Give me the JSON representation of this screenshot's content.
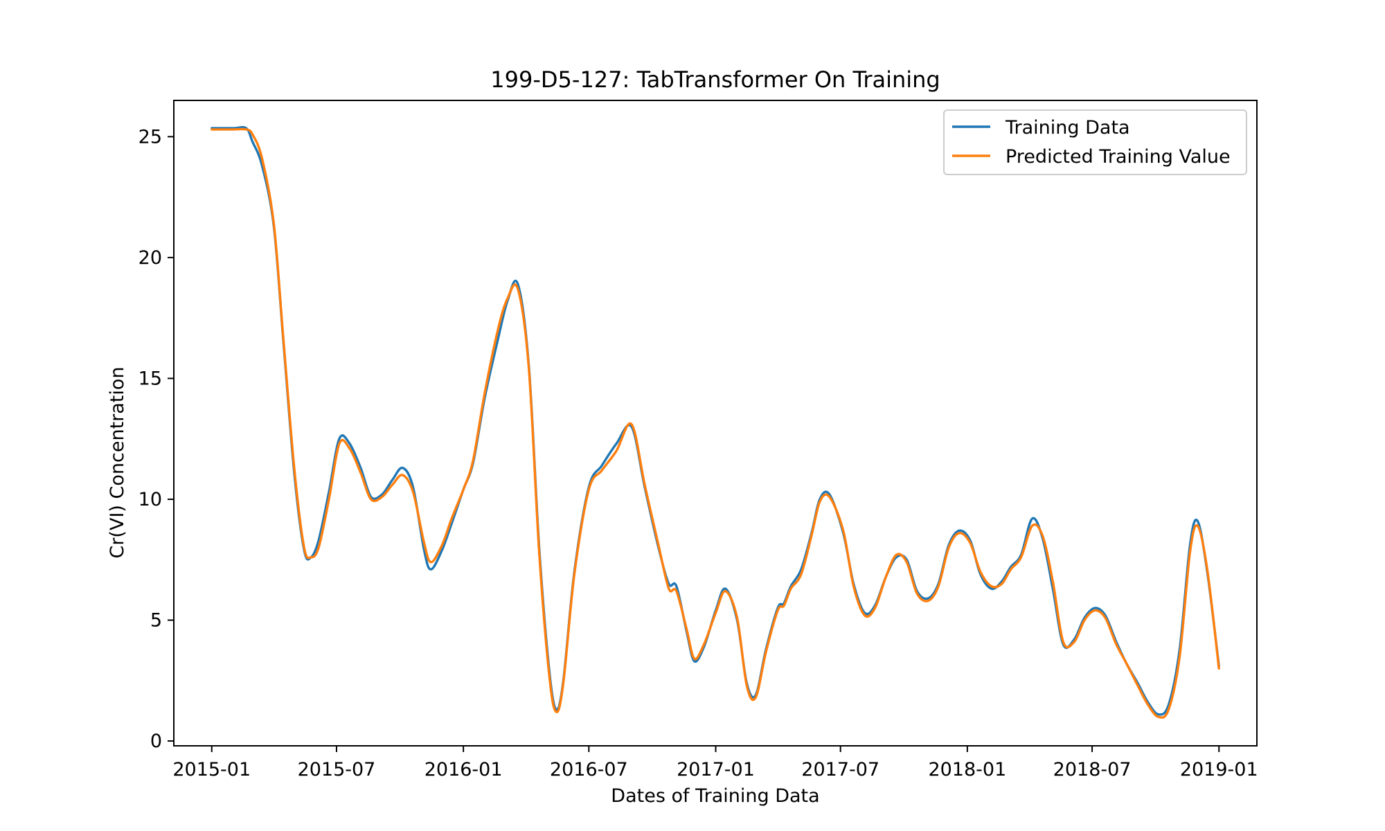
{
  "chart_data": {
    "type": "line",
    "title": "199-D5-127: TabTransformer On Training",
    "xlabel": "Dates of Training Data",
    "ylabel": "Cr(VI) Concentration",
    "xlim": [
      "2014-11-07",
      "2019-02-25"
    ],
    "ylim": [
      -0.2,
      26.5
    ],
    "x_ticks": [
      "2015-01",
      "2015-07",
      "2016-01",
      "2016-07",
      "2017-01",
      "2017-07",
      "2018-01",
      "2018-07",
      "2019-01"
    ],
    "y_ticks": [
      0,
      5,
      10,
      15,
      20,
      25
    ],
    "grid": false,
    "legend": "top-right",
    "series": [
      {
        "name": "Training Data",
        "color": "#1f77b4",
        "points": [
          [
            "2015-01-01",
            25.35
          ],
          [
            "2015-02-01",
            25.35
          ],
          [
            "2015-02-20",
            25.35
          ],
          [
            "2015-03-01",
            24.8
          ],
          [
            "2015-03-15",
            23.8
          ],
          [
            "2015-04-01",
            21.3
          ],
          [
            "2015-04-15",
            16.5
          ],
          [
            "2015-05-01",
            11.0
          ],
          [
            "2015-05-15",
            7.9
          ],
          [
            "2015-05-25",
            7.6
          ],
          [
            "2015-06-05",
            8.3
          ],
          [
            "2015-06-20",
            10.3
          ],
          [
            "2015-07-05",
            12.5
          ],
          [
            "2015-07-20",
            12.3
          ],
          [
            "2015-08-05",
            11.3
          ],
          [
            "2015-08-20",
            10.1
          ],
          [
            "2015-09-05",
            10.2
          ],
          [
            "2015-09-20",
            10.8
          ],
          [
            "2015-10-05",
            11.3
          ],
          [
            "2015-10-20",
            10.5
          ],
          [
            "2015-11-05",
            7.9
          ],
          [
            "2015-11-15",
            7.1
          ],
          [
            "2015-12-01",
            7.9
          ],
          [
            "2015-12-15",
            9.0
          ],
          [
            "2016-01-01",
            10.4
          ],
          [
            "2016-01-15",
            11.5
          ],
          [
            "2016-02-01",
            14.2
          ],
          [
            "2016-02-20",
            16.6
          ],
          [
            "2016-03-05",
            18.2
          ],
          [
            "2016-03-20",
            18.9
          ],
          [
            "2016-04-05",
            15.5
          ],
          [
            "2016-04-20",
            8.0
          ],
          [
            "2016-05-05",
            2.8
          ],
          [
            "2016-05-15",
            1.3
          ],
          [
            "2016-05-25",
            2.5
          ],
          [
            "2016-06-10",
            7.0
          ],
          [
            "2016-07-01",
            10.5
          ],
          [
            "2016-07-20",
            11.4
          ],
          [
            "2016-08-10",
            12.3
          ],
          [
            "2016-09-01",
            13.0
          ],
          [
            "2016-09-20",
            10.5
          ],
          [
            "2016-10-10",
            8.0
          ],
          [
            "2016-10-25",
            6.5
          ],
          [
            "2016-11-05",
            6.4
          ],
          [
            "2016-11-20",
            4.5
          ],
          [
            "2016-12-01",
            3.3
          ],
          [
            "2016-12-15",
            3.9
          ],
          [
            "2017-01-01",
            5.4
          ],
          [
            "2017-01-15",
            6.3
          ],
          [
            "2017-02-01",
            5.0
          ],
          [
            "2017-02-15",
            2.4
          ],
          [
            "2017-02-28",
            1.9
          ],
          [
            "2017-03-15",
            3.8
          ],
          [
            "2017-04-01",
            5.5
          ],
          [
            "2017-04-10",
            5.7
          ],
          [
            "2017-04-20",
            6.4
          ],
          [
            "2017-05-05",
            7.1
          ],
          [
            "2017-05-20",
            8.6
          ],
          [
            "2017-06-01",
            10.0
          ],
          [
            "2017-06-15",
            10.2
          ],
          [
            "2017-07-05",
            8.6
          ],
          [
            "2017-07-20",
            6.5
          ],
          [
            "2017-08-05",
            5.3
          ],
          [
            "2017-08-20",
            5.6
          ],
          [
            "2017-09-05",
            6.8
          ],
          [
            "2017-09-20",
            7.6
          ],
          [
            "2017-10-05",
            7.5
          ],
          [
            "2017-10-20",
            6.2
          ],
          [
            "2017-11-05",
            5.9
          ],
          [
            "2017-11-20",
            6.5
          ],
          [
            "2017-12-05",
            8.1
          ],
          [
            "2017-12-20",
            8.7
          ],
          [
            "2018-01-05",
            8.3
          ],
          [
            "2018-01-20",
            6.9
          ],
          [
            "2018-02-05",
            6.3
          ],
          [
            "2018-02-20",
            6.6
          ],
          [
            "2018-03-05",
            7.2
          ],
          [
            "2018-03-20",
            7.7
          ],
          [
            "2018-04-05",
            9.2
          ],
          [
            "2018-04-20",
            8.4
          ],
          [
            "2018-05-05",
            6.3
          ],
          [
            "2018-05-20",
            4.0
          ],
          [
            "2018-06-05",
            4.2
          ],
          [
            "2018-06-20",
            5.1
          ],
          [
            "2018-07-05",
            5.5
          ],
          [
            "2018-07-20",
            5.2
          ],
          [
            "2018-08-05",
            4.1
          ],
          [
            "2018-08-20",
            3.2
          ],
          [
            "2018-09-05",
            2.4
          ],
          [
            "2018-09-20",
            1.6
          ],
          [
            "2018-10-05",
            1.1
          ],
          [
            "2018-10-20",
            1.5
          ],
          [
            "2018-11-05",
            3.8
          ],
          [
            "2018-11-20",
            8.1
          ],
          [
            "2018-12-01",
            9.1
          ],
          [
            "2018-12-15",
            7.0
          ],
          [
            "2019-01-01",
            3.1
          ]
        ]
      },
      {
        "name": "Predicted Training Value",
        "color": "#ff7f0e",
        "points": [
          [
            "2015-01-01",
            25.3
          ],
          [
            "2015-02-01",
            25.3
          ],
          [
            "2015-02-20",
            25.3
          ],
          [
            "2015-03-01",
            25.1
          ],
          [
            "2015-03-15",
            24.1
          ],
          [
            "2015-04-01",
            21.4
          ],
          [
            "2015-04-15",
            16.6
          ],
          [
            "2015-05-01",
            11.2
          ],
          [
            "2015-05-15",
            8.0
          ],
          [
            "2015-05-25",
            7.6
          ],
          [
            "2015-06-05",
            8.0
          ],
          [
            "2015-06-20",
            10.0
          ],
          [
            "2015-07-05",
            12.3
          ],
          [
            "2015-07-20",
            12.1
          ],
          [
            "2015-08-05",
            11.1
          ],
          [
            "2015-08-20",
            10.0
          ],
          [
            "2015-09-05",
            10.1
          ],
          [
            "2015-09-20",
            10.6
          ],
          [
            "2015-10-05",
            11.0
          ],
          [
            "2015-10-20",
            10.3
          ],
          [
            "2015-11-05",
            8.2
          ],
          [
            "2015-11-15",
            7.4
          ],
          [
            "2015-12-01",
            8.1
          ],
          [
            "2015-12-15",
            9.2
          ],
          [
            "2016-01-01",
            10.4
          ],
          [
            "2016-01-15",
            11.6
          ],
          [
            "2016-02-01",
            14.4
          ],
          [
            "2016-02-20",
            17.0
          ],
          [
            "2016-03-05",
            18.3
          ],
          [
            "2016-03-20",
            18.7
          ],
          [
            "2016-04-05",
            15.4
          ],
          [
            "2016-04-20",
            7.8
          ],
          [
            "2016-05-05",
            2.6
          ],
          [
            "2016-05-15",
            1.2
          ],
          [
            "2016-05-25",
            2.4
          ],
          [
            "2016-06-10",
            6.9
          ],
          [
            "2016-07-01",
            10.4
          ],
          [
            "2016-07-20",
            11.2
          ],
          [
            "2016-08-10",
            12.0
          ],
          [
            "2016-09-01",
            13.1
          ],
          [
            "2016-09-20",
            10.6
          ],
          [
            "2016-10-10",
            8.1
          ],
          [
            "2016-10-25",
            6.3
          ],
          [
            "2016-11-05",
            6.2
          ],
          [
            "2016-11-20",
            4.6
          ],
          [
            "2016-12-01",
            3.4
          ],
          [
            "2016-12-15",
            4.0
          ],
          [
            "2017-01-01",
            5.3
          ],
          [
            "2017-01-15",
            6.2
          ],
          [
            "2017-02-01",
            5.1
          ],
          [
            "2017-02-15",
            2.3
          ],
          [
            "2017-02-28",
            1.8
          ],
          [
            "2017-03-15",
            3.7
          ],
          [
            "2017-04-01",
            5.4
          ],
          [
            "2017-04-10",
            5.6
          ],
          [
            "2017-04-20",
            6.3
          ],
          [
            "2017-05-05",
            6.9
          ],
          [
            "2017-05-20",
            8.5
          ],
          [
            "2017-06-01",
            9.9
          ],
          [
            "2017-06-15",
            10.1
          ],
          [
            "2017-07-05",
            8.7
          ],
          [
            "2017-07-20",
            6.4
          ],
          [
            "2017-08-05",
            5.2
          ],
          [
            "2017-08-20",
            5.5
          ],
          [
            "2017-09-05",
            6.8
          ],
          [
            "2017-09-20",
            7.7
          ],
          [
            "2017-10-05",
            7.4
          ],
          [
            "2017-10-20",
            6.1
          ],
          [
            "2017-11-05",
            5.8
          ],
          [
            "2017-11-20",
            6.4
          ],
          [
            "2017-12-05",
            8.0
          ],
          [
            "2017-12-20",
            8.6
          ],
          [
            "2018-01-05",
            8.2
          ],
          [
            "2018-01-20",
            7.0
          ],
          [
            "2018-02-05",
            6.4
          ],
          [
            "2018-02-20",
            6.5
          ],
          [
            "2018-03-05",
            7.1
          ],
          [
            "2018-03-20",
            7.6
          ],
          [
            "2018-04-05",
            8.9
          ],
          [
            "2018-04-20",
            8.5
          ],
          [
            "2018-05-05",
            6.6
          ],
          [
            "2018-05-20",
            4.1
          ],
          [
            "2018-06-05",
            4.1
          ],
          [
            "2018-06-20",
            5.0
          ],
          [
            "2018-07-05",
            5.4
          ],
          [
            "2018-07-20",
            5.1
          ],
          [
            "2018-08-05",
            4.0
          ],
          [
            "2018-08-20",
            3.2
          ],
          [
            "2018-09-05",
            2.3
          ],
          [
            "2018-09-20",
            1.5
          ],
          [
            "2018-10-05",
            1.0
          ],
          [
            "2018-10-20",
            1.3
          ],
          [
            "2018-11-05",
            3.5
          ],
          [
            "2018-11-20",
            7.8
          ],
          [
            "2018-12-01",
            8.9
          ],
          [
            "2018-12-15",
            7.1
          ],
          [
            "2019-01-01",
            3.0
          ]
        ]
      }
    ]
  }
}
